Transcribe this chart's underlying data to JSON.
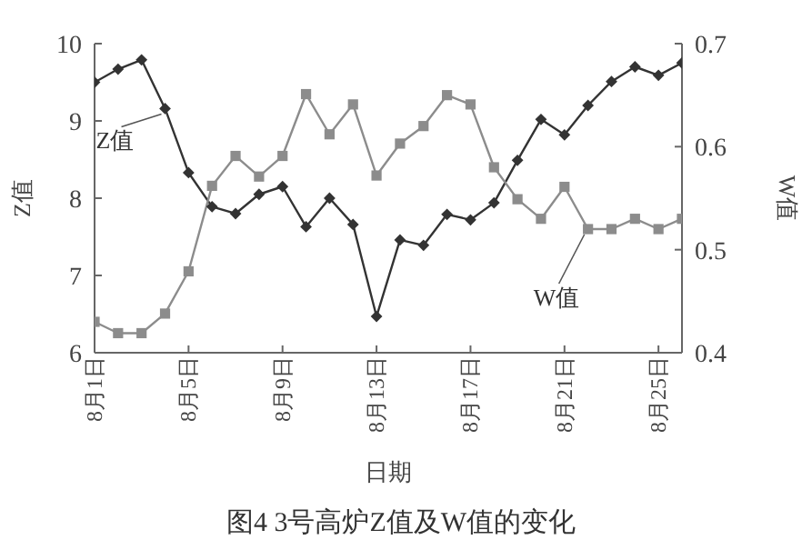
{
  "chart_data": {
    "type": "line",
    "title": "图4 3号高炉Z值及W值的变化",
    "xlabel": "日期",
    "ylabel": "Z值",
    "y2label": "W值",
    "categories": [
      "8月1日",
      null,
      null,
      null,
      "8月5日",
      null,
      null,
      null,
      "8月9日",
      null,
      null,
      null,
      "8月13日",
      null,
      null,
      null,
      "8月17日",
      null,
      null,
      null,
      "8月21日",
      null,
      null,
      null,
      "8月25日",
      null
    ],
    "series": [
      {
        "name": "Z值",
        "color": "#333333",
        "marker": "diamond",
        "values": [
          9.5,
          9.67,
          9.79,
          9.16,
          8.33,
          7.89,
          7.8,
          8.05,
          8.15,
          7.63,
          8.0,
          7.66,
          6.47,
          7.46,
          7.39,
          7.79,
          7.72,
          7.94,
          8.49,
          9.02,
          8.82,
          9.2,
          9.51,
          9.7,
          9.59,
          9.75
        ]
      },
      {
        "name": "W值",
        "color": "#8c8c8c",
        "marker": "square",
        "axis": "y2",
        "values": [
          0.43,
          0.419,
          0.419,
          0.438,
          0.479,
          0.562,
          0.591,
          0.571,
          0.591,
          0.651,
          0.612,
          0.641,
          0.572,
          0.603,
          0.62,
          0.65,
          0.641,
          0.58,
          0.549,
          0.53,
          0.561,
          0.52,
          0.52,
          0.53,
          0.52,
          0.53
        ]
      }
    ],
    "ylim": [
      6,
      10
    ],
    "yticks": [
      6,
      7,
      8,
      9,
      10
    ],
    "y2lim": [
      0.4,
      0.7
    ],
    "y2ticks": [
      {
        "value": 0.4,
        "label": "0.4"
      },
      {
        "value": 0.5,
        "label": "0.5"
      },
      {
        "value": 0.6,
        "label": "0.6"
      },
      {
        "value": 0.7,
        "label": "0.7"
      }
    ],
    "grid": false,
    "legend": false
  }
}
